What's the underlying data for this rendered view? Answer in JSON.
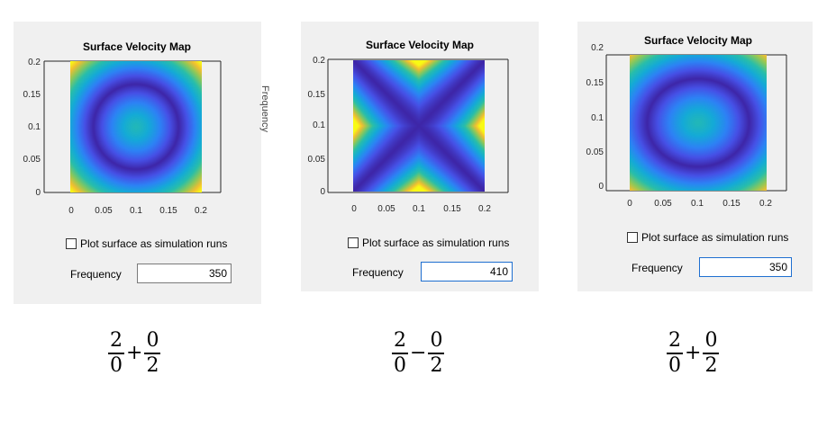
{
  "panels": [
    {
      "title": "Surface Velocity Map",
      "checkbox_label": "Plot surface as simulation runs",
      "checked": false,
      "frequency_label": "Frequency",
      "frequency_value": "350",
      "pattern": "ring",
      "y_ticks": [
        "0.2",
        "0.15",
        "0.1",
        "0.05",
        "0"
      ],
      "x_ticks": [
        "0",
        "0.05",
        "0.1",
        "0.15",
        "0.2"
      ]
    },
    {
      "title": "Surface Velocity Map",
      "checkbox_label": "Plot surface as simulation runs",
      "checked": false,
      "frequency_label": "Frequency",
      "frequency_value": "410",
      "pattern": "saddle",
      "y_ticks": [
        "0.2",
        "0.15",
        "0.1",
        "0.05",
        "0"
      ],
      "x_ticks": [
        "0",
        "0.05",
        "0.1",
        "0.15",
        "0.2"
      ]
    },
    {
      "title": "Surface Velocity Map",
      "checkbox_label": "Plot surface as simulation runs",
      "checked": false,
      "frequency_label": "Frequency",
      "frequency_value": "350",
      "pattern": "ellipse",
      "y_ticks": [
        "0.2",
        "0.15",
        "0.1",
        "0.05",
        "0"
      ],
      "x_ticks": [
        "0",
        "0.05",
        "0.1",
        "0.15",
        "0.2"
      ]
    }
  ],
  "stray_label": "Frequency",
  "formulas": [
    {
      "num1": "2",
      "den1": "0",
      "op": "+",
      "num2": "0",
      "den2": "2"
    },
    {
      "num1": "2",
      "den1": "0",
      "op": "−",
      "num2": "0",
      "den2": "2"
    },
    {
      "num1": "2",
      "den1": "0",
      "op": "+",
      "num2": "0",
      "den2": "2"
    }
  ],
  "colors": {
    "panel_bg": "#f0f0f0",
    "yellow": "#f9e01a",
    "green_cyan": "#2fb8a8",
    "blue": "#3b5bdb",
    "dark_blue": "#3a1f9a",
    "focus_border": "#1e6fd0"
  }
}
